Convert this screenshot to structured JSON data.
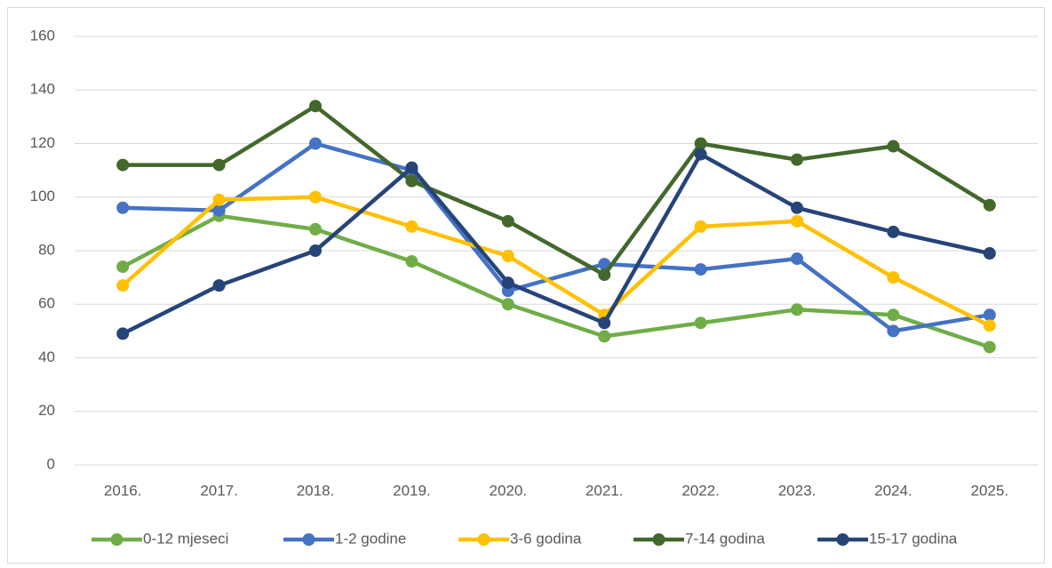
{
  "chart_data": {
    "type": "line",
    "categories": [
      "2016.",
      "2017.",
      "2018.",
      "2019.",
      "2020.",
      "2021.",
      "2022.",
      "2023.",
      "2024.",
      "2025."
    ],
    "series": [
      {
        "name": "0-12 mjeseci",
        "color": "#70ad47",
        "values": [
          74,
          93,
          88,
          76,
          60,
          48,
          53,
          58,
          56,
          44
        ]
      },
      {
        "name": "1-2 godine",
        "color": "#4472c4",
        "values": [
          96,
          95,
          120,
          110,
          65,
          75,
          73,
          77,
          50,
          56
        ]
      },
      {
        "name": "3-6 godina",
        "color": "#ffc000",
        "values": [
          67,
          99,
          100,
          89,
          78,
          56,
          89,
          91,
          70,
          52
        ]
      },
      {
        "name": "7-14 godina",
        "color": "#43682b",
        "values": [
          112,
          112,
          134,
          106,
          91,
          71,
          120,
          114,
          119,
          97
        ]
      },
      {
        "name": "15-17 godina",
        "color": "#264478",
        "values": [
          49,
          67,
          80,
          111,
          68,
          53,
          116,
          96,
          87,
          79
        ]
      }
    ],
    "ylim": [
      0,
      160
    ],
    "yticks": [
      0,
      20,
      40,
      60,
      80,
      100,
      120,
      140,
      160
    ],
    "grid": true,
    "legend": "bottom"
  }
}
